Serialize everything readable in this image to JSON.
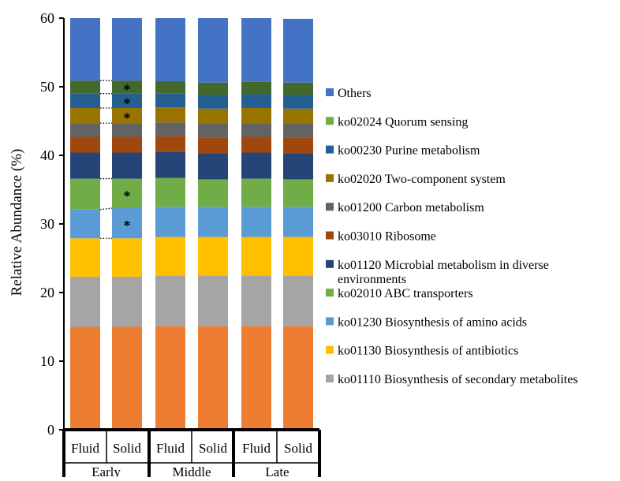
{
  "chart_data": {
    "type": "bar",
    "stacked": true,
    "ylabel": "Relative Abundance (%)",
    "ylim": [
      0,
      60
    ],
    "yticks": [
      0,
      10,
      20,
      30,
      40,
      50,
      60
    ],
    "categories": [
      "Fluid",
      "Solid",
      "Fluid",
      "Solid",
      "Fluid",
      "Solid"
    ],
    "groups": [
      {
        "label": "Early",
        "bars": [
          0,
          1
        ]
      },
      {
        "label": "Middle",
        "bars": [
          2,
          3
        ]
      },
      {
        "label": "Late",
        "bars": [
          4,
          5
        ]
      }
    ],
    "series": [
      {
        "name": "ko01110 Biosynthesis of secondary metabolites",
        "color": "#ED7D31",
        "values": [
          15.0,
          15.0,
          15.1,
          15.1,
          15.1,
          15.1
        ]
      },
      {
        "name": "ko01130 Biosynthesis of antibiotics",
        "color": "#A5A5A5",
        "values": [
          7.3,
          7.3,
          7.4,
          7.4,
          7.4,
          7.4
        ]
      },
      {
        "name": "ko01230 Biosynthesis of amino acids",
        "color": "#FFC000",
        "values": [
          5.6,
          5.6,
          5.6,
          5.6,
          5.6,
          5.6
        ]
      },
      {
        "name": "ko02010 ABC transporters",
        "color": "#5B9BD5",
        "values": [
          4.2,
          4.4,
          4.4,
          4.4,
          4.4,
          4.4
        ]
      },
      {
        "name": "ko01120 Microbial metabolism in diverse environments",
        "color": "#70AD47",
        "values": [
          4.5,
          4.3,
          4.2,
          4.0,
          4.1,
          4.0
        ]
      },
      {
        "name": "ko03010 Ribosome",
        "color": "#264478",
        "values": [
          3.8,
          3.8,
          3.8,
          3.8,
          3.8,
          3.8
        ]
      },
      {
        "name": "ko01200 Carbon metabolism",
        "color": "#9E480E",
        "values": [
          2.3,
          2.3,
          2.3,
          2.3,
          2.3,
          2.3
        ]
      },
      {
        "name": "ko02020 Two-component system",
        "color": "#636363",
        "values": [
          2.0,
          2.0,
          2.0,
          2.0,
          2.0,
          2.0
        ]
      },
      {
        "name": "ko00230 Purine metabolism",
        "color": "#997300",
        "values": [
          2.2,
          2.2,
          2.2,
          2.2,
          2.2,
          2.2
        ]
      },
      {
        "name": "ko02024 Quorum sensing",
        "color": "#255E91",
        "values": [
          2.1,
          2.1,
          2.0,
          2.0,
          2.0,
          2.0
        ]
      },
      {
        "name": "Others",
        "color": "#43682B",
        "values": [
          1.9,
          1.9,
          1.8,
          1.8,
          1.8,
          1.8
        ]
      },
      {
        "name": "Others",
        "color": "#4472C4",
        "values": [
          9.1,
          9.1,
          9.2,
          9.4,
          9.3,
          9.3
        ]
      }
    ],
    "significance": {
      "bar": 1,
      "symbol": "*",
      "series_indices": [
        3,
        4,
        8,
        9,
        10
      ]
    },
    "legend_order": [
      {
        "name": "Others",
        "color": "#4472C4"
      },
      {
        "name": "ko02024 Quorum sensing",
        "color": "#70AD47"
      },
      {
        "name": "ko00230 Purine metabolism",
        "color": "#255E91"
      },
      {
        "name": "ko02020 Two-component system",
        "color": "#997300"
      },
      {
        "name": "ko01200 Carbon metabolism",
        "color": "#636363"
      },
      {
        "name": "ko03010 Ribosome",
        "color": "#9E480E"
      },
      {
        "name": "ko01120 Microbial metabolism in diverse environments",
        "color": "#264478"
      },
      {
        "name": "ko02010 ABC transporters",
        "color": "#70AD47"
      },
      {
        "name": "ko01230 Biosynthesis of amino acids",
        "color": "#5B9BD5"
      },
      {
        "name": "ko01130 Biosynthesis of antibiotics",
        "color": "#FFC000"
      },
      {
        "name": "ko01110 Biosynthesis of secondary metabolites",
        "color": "#A5A5A5"
      }
    ],
    "legend_placement": "right",
    "grid": false
  }
}
